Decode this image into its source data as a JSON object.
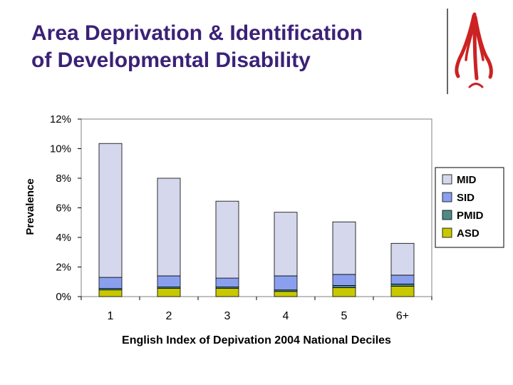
{
  "slide": {
    "title_line1": "Area Deprivation & Identification",
    "title_line2": "of Developmental Disability"
  },
  "colors": {
    "title": "#3b2177",
    "logo": "#cc2222"
  },
  "chart_data": {
    "type": "bar",
    "stacked": true,
    "title": "",
    "xlabel": "English Index of Depivation 2004 National Deciles",
    "ylabel": "Prevalence",
    "ylim": [
      0,
      12
    ],
    "yticks": [
      0,
      2,
      4,
      6,
      8,
      10,
      12
    ],
    "ytick_labels": [
      "0%",
      "2%",
      "4%",
      "6%",
      "8%",
      "10%",
      "12%"
    ],
    "categories": [
      "1",
      "2",
      "3",
      "4",
      "5",
      "6+"
    ],
    "series": [
      {
        "name": "ASD",
        "color": "#c8c800",
        "values": [
          0.45,
          0.55,
          0.55,
          0.35,
          0.6,
          0.7
        ]
      },
      {
        "name": "PMID",
        "color": "#4f8a86",
        "values": [
          0.1,
          0.1,
          0.1,
          0.1,
          0.15,
          0.15
        ]
      },
      {
        "name": "SID",
        "color": "#8aa0ee",
        "values": [
          0.75,
          0.75,
          0.6,
          0.95,
          0.75,
          0.6
        ]
      },
      {
        "name": "MID",
        "color": "#d5d7ec",
        "values": [
          9.05,
          6.6,
          5.2,
          4.3,
          3.55,
          2.15
        ]
      }
    ],
    "legend_order": [
      "MID",
      "SID",
      "PMID",
      "ASD"
    ],
    "legend_position": "right",
    "grid": false
  }
}
